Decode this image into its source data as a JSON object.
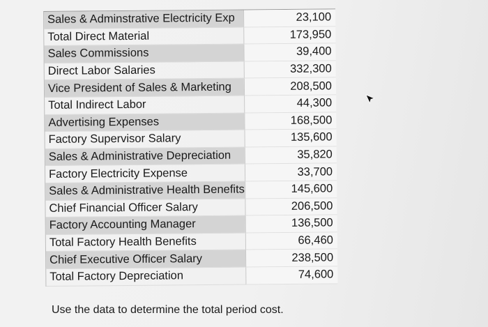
{
  "table": {
    "rows": [
      {
        "label": "Sales & Adminstrative Electricity Exp",
        "value": "23,100"
      },
      {
        "label": "Total Direct Material",
        "value": "173,950"
      },
      {
        "label": "Sales Commissions",
        "value": "39,400"
      },
      {
        "label": "Direct Labor Salaries",
        "value": "332,300"
      },
      {
        "label": "Vice President of Sales & Marketing",
        "value": "208,500"
      },
      {
        "label": "Total Indirect Labor",
        "value": "44,300"
      },
      {
        "label": "Advertising Expenses",
        "value": "168,500"
      },
      {
        "label": "Factory Supervisor Salary",
        "value": "135,600"
      },
      {
        "label": "Sales & Administrative Depreciation",
        "value": "35,820"
      },
      {
        "label": "Factory Electricity Expense",
        "value": "33,700"
      },
      {
        "label": "Sales & Administrative Health Benefits",
        "value": "145,600"
      },
      {
        "label": "Chief Financial Officer Salary",
        "value": "206,500"
      },
      {
        "label": "Factory Accounting Manager",
        "value": "136,500"
      },
      {
        "label": "Total Factory Health Benefits",
        "value": "66,460"
      },
      {
        "label": "Chief Executive Officer Salary",
        "value": "238,500"
      },
      {
        "label": "Total Factory Depreciation",
        "value": "74,600"
      }
    ]
  },
  "question": "Use the data to determine the total period cost.",
  "icons": {
    "cursor": "mouse-pointer-icon"
  }
}
